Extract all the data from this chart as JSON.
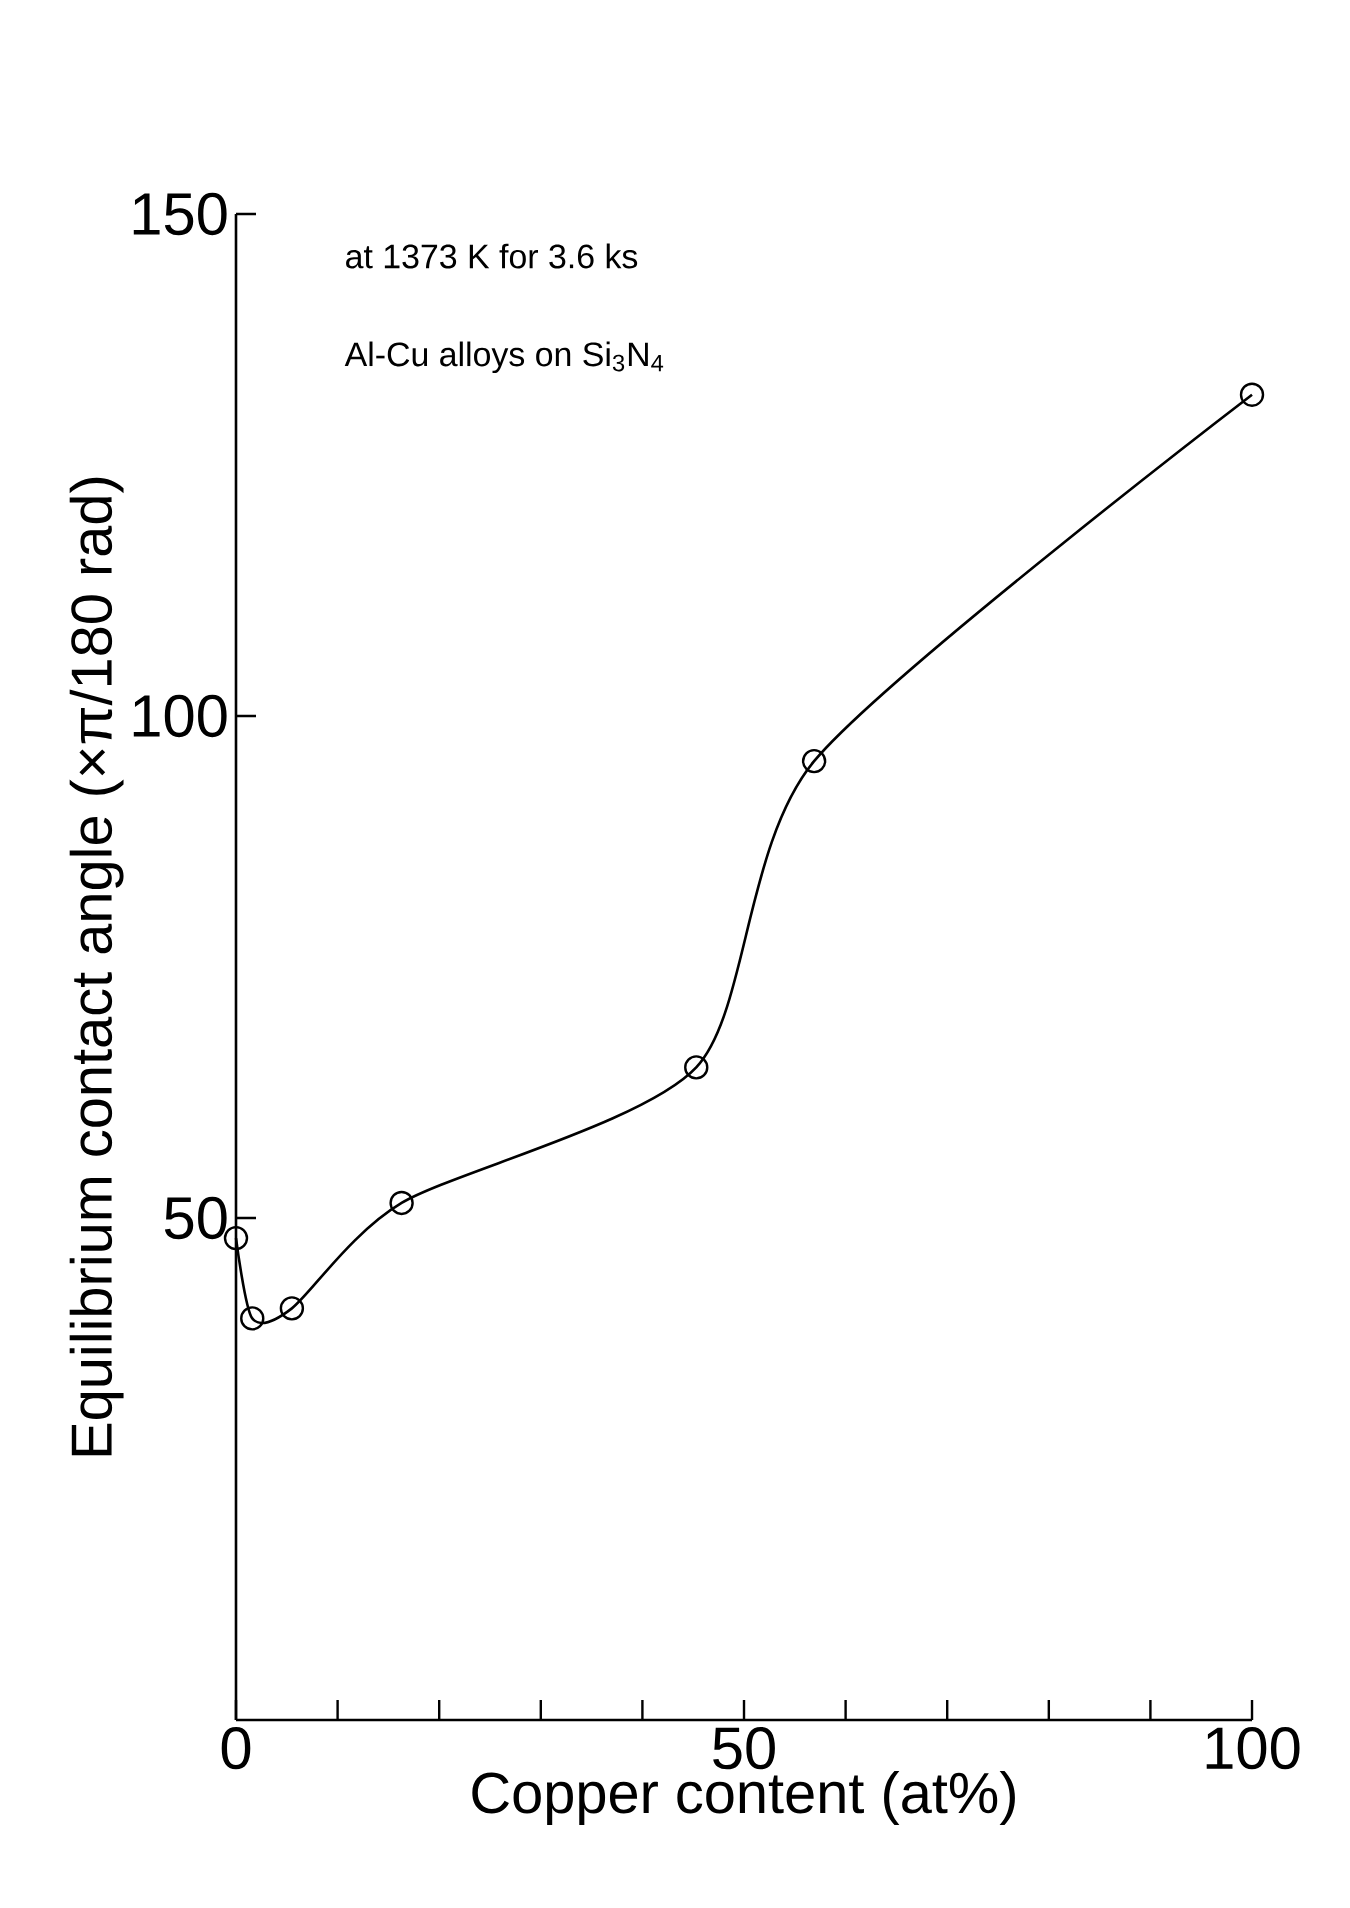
{
  "chart_data": {
    "type": "line",
    "xlabel": "Copper content (at%)",
    "ylabel": "Equilibrium contact angle (×π/180 rad)",
    "annotations": [
      "at 1373 K for 3.6 ks",
      "Al-Cu alloys on Si$_{3}$N$_{4}$"
    ],
    "x": [
      0,
      1.6,
      5.5,
      16.3,
      45.3,
      56.9,
      100
    ],
    "series": [
      {
        "color": "#000000",
        "values": [
          48,
          40,
          41,
          51.5,
          65,
          95.5,
          132
        ]
      }
    ],
    "xlim": [
      0,
      100
    ],
    "ylim": [
      0,
      150
    ],
    "xticks": [
      0,
      {
        "value": 10,
        "label": null
      },
      {
        "value": 20,
        "label": null
      },
      {
        "value": 30,
        "label": null
      },
      {
        "value": 40,
        "label": null
      },
      50,
      {
        "value": 60,
        "label": null
      },
      {
        "value": 70,
        "label": null
      },
      {
        "value": 80,
        "label": null
      },
      {
        "value": 90,
        "label": null
      },
      100
    ],
    "yticks": [
      50,
      100,
      150
    ],
    "marker": "circle",
    "line_style": "solid"
  }
}
